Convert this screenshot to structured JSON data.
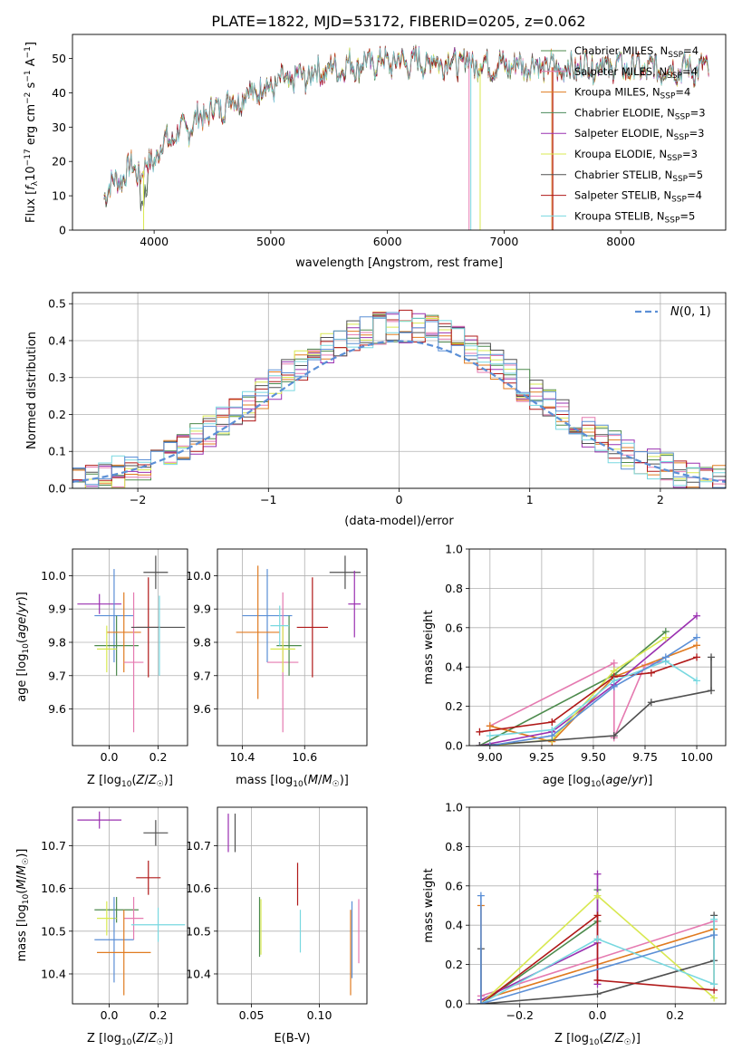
{
  "figure": {
    "title": "PLATE=1822, MJD=53172, FIBERID=0205, z=0.062"
  },
  "chart_data": [
    {
      "id": "spectrum",
      "type": "line",
      "title": "PLATE=1822, MJD=53172, FIBERID=0205, z=0.062",
      "xlabel": "wavelength [Angstrom, rest frame]",
      "ylabel": "Flux [f_λ 10^-17 erg cm^-2 s^-1 A^-1]",
      "xlim": [
        3300,
        8900
      ],
      "ylim": [
        0,
        57
      ],
      "xticks": [
        4000,
        5000,
        6000,
        7000,
        8000
      ],
      "yticks": [
        0,
        10,
        20,
        30,
        40,
        50
      ],
      "grid": false,
      "legend": "top-right",
      "continuum": {
        "x": [
          3570,
          3700,
          3800,
          3900,
          4000,
          4100,
          4200,
          4300,
          4400,
          4500,
          4700,
          4900,
          5100,
          5300,
          5500,
          5700,
          5900,
          6100,
          6300,
          6500,
          6700,
          6900,
          7100,
          7300,
          7500,
          7700,
          7900,
          8100,
          8300,
          8500,
          8700
        ],
        "y": [
          11,
          15,
          18,
          17,
          21,
          26,
          28,
          30,
          33,
          35,
          38,
          41,
          43,
          45,
          47,
          48,
          49,
          49,
          49,
          49,
          49,
          48,
          48,
          48,
          47,
          48,
          48,
          47,
          47,
          47,
          47
        ]
      },
      "series": [
        {
          "name": "Chabrier MILES, N_SSP=4",
          "color": "#4c8a4c"
        },
        {
          "name": "Salpeter MILES, N_SSP=4",
          "color": "#e57ab0"
        },
        {
          "name": "Kroupa MILES, N_SSP=4",
          "color": "#e07b20"
        },
        {
          "name": "Chabrier ELODIE, N_SSP=3",
          "color": "#4a8a5a"
        },
        {
          "name": "Salpeter ELODIE, N_SSP=3",
          "color": "#9a30b0"
        },
        {
          "name": "Kroupa ELODIE, N_SSP=3",
          "color": "#d8e850"
        },
        {
          "name": "Chabrier STELIB, N_SSP=5",
          "color": "#505050"
        },
        {
          "name": "Salpeter STELIB, N_SSP=4",
          "color": "#b01818"
        },
        {
          "name": "Kroupa STELIB, N_SSP=5",
          "color": "#78d8e0"
        }
      ]
    },
    {
      "id": "residuals",
      "type": "line",
      "xlabel": "(data-model)/error",
      "ylabel": "Normed distribution",
      "xlim": [
        -2.5,
        2.5
      ],
      "ylim": [
        0,
        0.53
      ],
      "xticks": [
        -2,
        -1,
        0,
        1,
        2
      ],
      "yticks": [
        0.0,
        0.1,
        0.2,
        0.3,
        0.4,
        0.5
      ],
      "grid": true,
      "legend": "top-right",
      "reference": {
        "name": "N(0,1)",
        "style": "dashed",
        "color": "#5b8fd6"
      },
      "hist_colors": [
        "#4c8a4c",
        "#e57ab0",
        "#e07b20",
        "#9a30b0",
        "#d8e850",
        "#505050",
        "#b01818",
        "#78d8e0",
        "#5b8fd6"
      ]
    },
    {
      "id": "age-vs-Z",
      "type": "scatter",
      "xlabel": "Z [log10(Z/Z☉)]",
      "ylabel": "age  [log10(age/yr)]",
      "xlim": [
        -0.15,
        0.32
      ],
      "ylim": [
        9.49,
        10.08
      ],
      "xticks": [
        0.0,
        0.2
      ],
      "yticks": [
        9.6,
        9.7,
        9.8,
        9.9,
        10.0
      ],
      "grid": true,
      "points": [
        {
          "x": -0.04,
          "y": 9.915,
          "xerr": 0.09,
          "yerr": 0.03,
          "color": "#9a30b0"
        },
        {
          "x": 0.02,
          "y": 9.88,
          "xerr": 0.08,
          "yerr": 0.14,
          "color": "#5b8fd6"
        },
        {
          "x": 0.03,
          "y": 9.79,
          "xerr": 0.09,
          "yerr": 0.09,
          "color": "#4c8a4c"
        },
        {
          "x": 0.06,
          "y": 9.83,
          "xerr": 0.07,
          "yerr": 0.12,
          "color": "#e07b20"
        },
        {
          "x": 0.1,
          "y": 9.74,
          "xerr": 0.04,
          "yerr": 0.21,
          "color": "#e57ab0"
        },
        {
          "x": -0.01,
          "y": 9.78,
          "xerr": 0.04,
          "yerr": 0.07,
          "color": "#d8e850"
        },
        {
          "x": 0.16,
          "y": 9.845,
          "xerr": 0.05,
          "yerr": 0.15,
          "color": "#b01818"
        },
        {
          "x": 0.19,
          "y": 10.01,
          "xerr": 0.05,
          "yerr": 0.05,
          "color": "#505050"
        },
        {
          "x": 0.2,
          "y": 9.845,
          "xerr": 0.11,
          "yerr": 0.0,
          "color": "#505050"
        },
        {
          "x": 0.205,
          "y": 9.82,
          "xerr": 0.0,
          "yerr": 0.12,
          "color": "#78d8e0"
        }
      ]
    },
    {
      "id": "age-vs-mass",
      "type": "scatter",
      "xlabel": "mass [log10(M/M☉)]",
      "ylabel": "",
      "xlim": [
        10.32,
        10.8
      ],
      "ylim": [
        9.49,
        10.08
      ],
      "xticks": [
        10.4,
        10.6
      ],
      "yticks": [
        9.6,
        9.7,
        9.8,
        9.9,
        10.0
      ],
      "grid": true,
      "points": [
        {
          "x": 10.48,
          "y": 9.88,
          "xerr": 0.08,
          "yerr": 0.14,
          "color": "#5b8fd6"
        },
        {
          "x": 10.45,
          "y": 9.83,
          "xerr": 0.07,
          "yerr": 0.2,
          "color": "#e07b20"
        },
        {
          "x": 10.53,
          "y": 9.74,
          "xerr": 0.05,
          "yerr": 0.21,
          "color": "#e57ab0"
        },
        {
          "x": 10.55,
          "y": 9.79,
          "xerr": 0.04,
          "yerr": 0.09,
          "color": "#4c8a4c"
        },
        {
          "x": 10.53,
          "y": 9.78,
          "xerr": 0.04,
          "yerr": 0.07,
          "color": "#d8e850"
        },
        {
          "x": 10.52,
          "y": 9.85,
          "xerr": 0.03,
          "yerr": 0.06,
          "color": "#78d8e0"
        },
        {
          "x": 10.625,
          "y": 9.845,
          "xerr": 0.05,
          "yerr": 0.15,
          "color": "#b01818"
        },
        {
          "x": 10.73,
          "y": 10.01,
          "xerr": 0.05,
          "yerr": 0.05,
          "color": "#505050"
        },
        {
          "x": 10.76,
          "y": 9.915,
          "xerr": 0.02,
          "yerr": 0.1,
          "color": "#9a30b0"
        }
      ]
    },
    {
      "id": "massweight-vs-age",
      "type": "line",
      "xlabel": "age  [log10(age/yr)]",
      "ylabel": "mass weight",
      "xlim": [
        8.9,
        10.14
      ],
      "ylim": [
        0.0,
        1.0
      ],
      "xticks": [
        9.0,
        9.25,
        9.5,
        9.75,
        10.0
      ],
      "yticks": [
        0.0,
        0.2,
        0.4,
        0.6,
        0.8,
        1.0
      ],
      "grid": true,
      "series": [
        {
          "color": "#4c8a4c",
          "x": [
            8.95,
            9.6,
            9.85
          ],
          "y": [
            0.0,
            0.36,
            0.58
          ]
        },
        {
          "color": "#e57ab0",
          "x": [
            9.0,
            9.6,
            9.6,
            9.75,
            9.85
          ],
          "y": [
            0.1,
            0.42,
            0.04,
            0.41,
            0.43
          ]
        },
        {
          "color": "#e07b20",
          "x": [
            9.0,
            9.3,
            9.6,
            10.0
          ],
          "y": [
            0.1,
            0.02,
            0.35,
            0.51
          ]
        },
        {
          "color": "#9a30b0",
          "x": [
            8.95,
            9.3,
            9.6,
            10.0
          ],
          "y": [
            0.0,
            0.07,
            0.31,
            0.66
          ]
        },
        {
          "color": "#d8e850",
          "x": [
            9.0,
            9.3,
            9.6,
            9.85
          ],
          "y": [
            0.0,
            0.03,
            0.38,
            0.55
          ]
        },
        {
          "color": "#505050",
          "x": [
            8.95,
            9.6,
            9.78,
            10.07,
            10.07
          ],
          "y": [
            0.0,
            0.05,
            0.22,
            0.28,
            0.45
          ]
        },
        {
          "color": "#b01818",
          "x": [
            8.95,
            9.3,
            9.6,
            9.78,
            10.0
          ],
          "y": [
            0.07,
            0.12,
            0.35,
            0.37,
            0.45
          ]
        },
        {
          "color": "#78d8e0",
          "x": [
            9.0,
            9.3,
            9.6,
            9.85,
            10.0
          ],
          "y": [
            0.05,
            0.08,
            0.33,
            0.43,
            0.33
          ]
        },
        {
          "color": "#5b8fd6",
          "x": [
            9.0,
            9.3,
            9.6,
            9.85,
            10.0
          ],
          "y": [
            0.0,
            0.05,
            0.3,
            0.45,
            0.55
          ]
        }
      ]
    },
    {
      "id": "mass-vs-Z",
      "type": "scatter",
      "xlabel": "Z [log10(Z/Z☉)]",
      "ylabel": "mass [log10(M/M☉)]",
      "xlim": [
        -0.15,
        0.32
      ],
      "ylim": [
        10.33,
        10.79
      ],
      "xticks": [
        0.0,
        0.2
      ],
      "yticks": [
        10.4,
        10.5,
        10.6,
        10.7
      ],
      "grid": true,
      "points": [
        {
          "x": -0.04,
          "y": 10.76,
          "xerr": 0.09,
          "yerr": 0.02,
          "color": "#9a30b0"
        },
        {
          "x": 0.19,
          "y": 10.73,
          "xerr": 0.05,
          "yerr": 0.03,
          "color": "#505050"
        },
        {
          "x": 0.16,
          "y": 10.625,
          "xerr": 0.05,
          "yerr": 0.04,
          "color": "#b01818"
        },
        {
          "x": 0.03,
          "y": 10.55,
          "xerr": 0.09,
          "yerr": 0.03,
          "color": "#4c8a4c"
        },
        {
          "x": 0.1,
          "y": 10.53,
          "xerr": 0.04,
          "yerr": 0.05,
          "color": "#e57ab0"
        },
        {
          "x": -0.01,
          "y": 10.53,
          "xerr": 0.04,
          "yerr": 0.04,
          "color": "#d8e850"
        },
        {
          "x": 0.2,
          "y": 10.515,
          "xerr": 0.11,
          "yerr": 0.04,
          "color": "#78d8e0"
        },
        {
          "x": 0.02,
          "y": 10.48,
          "xerr": 0.08,
          "yerr": 0.1,
          "color": "#5b8fd6"
        },
        {
          "x": 0.06,
          "y": 10.45,
          "xerr": 0.11,
          "yerr": 0.1,
          "color": "#e07b20"
        }
      ]
    },
    {
      "id": "mass-vs-ebv",
      "type": "scatter",
      "xlabel": "E(B-V)",
      "ylabel": "",
      "xlim": [
        0.025,
        0.135
      ],
      "ylim": [
        10.33,
        10.79
      ],
      "xticks": [
        0.05,
        0.1
      ],
      "yticks": [
        10.4,
        10.5,
        10.6,
        10.7
      ],
      "grid": true,
      "points": [
        {
          "x": 0.033,
          "y": 10.73,
          "xerr": 0.0,
          "yerr": 0.045,
          "color": "#9a30b0"
        },
        {
          "x": 0.038,
          "y": 10.73,
          "xerr": 0.0,
          "yerr": 0.045,
          "color": "#505050"
        },
        {
          "x": 0.056,
          "y": 10.51,
          "xerr": 0.0,
          "yerr": 0.07,
          "color": "#4c8a4c"
        },
        {
          "x": 0.057,
          "y": 10.51,
          "xerr": 0.0,
          "yerr": 0.065,
          "color": "#d8e850"
        },
        {
          "x": 0.084,
          "y": 10.61,
          "xerr": 0.0,
          "yerr": 0.05,
          "color": "#b01818"
        },
        {
          "x": 0.086,
          "y": 10.5,
          "xerr": 0.0,
          "yerr": 0.05,
          "color": "#78d8e0"
        },
        {
          "x": 0.123,
          "y": 10.45,
          "xerr": 0.0,
          "yerr": 0.1,
          "color": "#e07b20"
        },
        {
          "x": 0.124,
          "y": 10.48,
          "xerr": 0.0,
          "yerr": 0.09,
          "color": "#5b8fd6"
        },
        {
          "x": 0.129,
          "y": 10.5,
          "xerr": 0.0,
          "yerr": 0.075,
          "color": "#e57ab0"
        }
      ]
    },
    {
      "id": "massweight-vs-Z",
      "type": "line",
      "xlabel": "Z [log10(Z/Z☉)]",
      "ylabel": "mass weight",
      "xlim": [
        -0.33,
        0.33
      ],
      "ylim": [
        0.0,
        1.0
      ],
      "xticks": [
        -0.2,
        0.0,
        0.2
      ],
      "yticks": [
        0.0,
        0.2,
        0.4,
        0.6,
        0.8,
        1.0
      ],
      "grid": true,
      "series": [
        {
          "color": "#4c8a4c",
          "x": [
            -0.3,
            0.0,
            0.0
          ],
          "y": [
            0.0,
            0.42,
            0.58
          ]
        },
        {
          "color": "#e57ab0",
          "x": [
            -0.3,
            0.3
          ],
          "y": [
            0.04,
            0.42
          ]
        },
        {
          "color": "#e07b20",
          "x": [
            -0.3,
            -0.3,
            0.3,
            0.3
          ],
          "y": [
            0.5,
            0.02,
            0.38,
            0.1
          ]
        },
        {
          "color": "#9a30b0",
          "x": [
            -0.3,
            0.0,
            0.0,
            0.0
          ],
          "y": [
            0.02,
            0.31,
            0.66,
            0.1
          ]
        },
        {
          "color": "#d8e850",
          "x": [
            -0.3,
            0.0,
            0.3
          ],
          "y": [
            0.0,
            0.55,
            0.03
          ]
        },
        {
          "color": "#505050",
          "x": [
            -0.3,
            -0.3,
            0.0,
            0.3,
            0.3
          ],
          "y": [
            0.28,
            0.0,
            0.05,
            0.22,
            0.45
          ]
        },
        {
          "color": "#b01818",
          "x": [
            -0.3,
            0.0,
            0.0,
            0.3
          ],
          "y": [
            0.0,
            0.45,
            0.12,
            0.07
          ]
        },
        {
          "color": "#78d8e0",
          "x": [
            -0.3,
            0.0,
            0.3,
            0.3
          ],
          "y": [
            0.0,
            0.33,
            0.1,
            0.43
          ]
        },
        {
          "color": "#5b8fd6",
          "x": [
            -0.3,
            -0.3,
            0.3
          ],
          "y": [
            0.55,
            0.0,
            0.35
          ]
        }
      ]
    }
  ]
}
